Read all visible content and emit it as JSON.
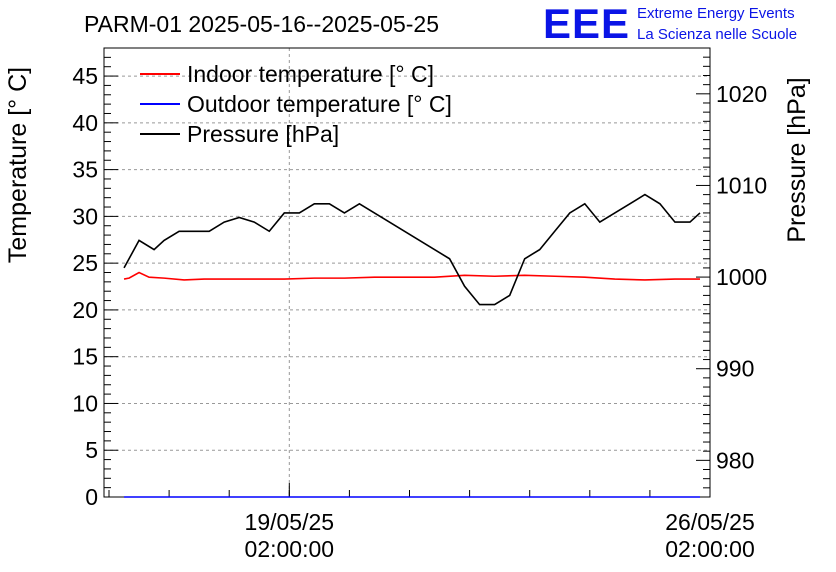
{
  "header": {
    "title": "PARM-01 2025-05-16--2025-05-25",
    "logo_text": "EEE",
    "org_line1": "Extreme Energy Events",
    "org_line2": "La Scienza nelle Scuole"
  },
  "colors": {
    "indoor": "#ff0000",
    "outdoor": "#0000ff",
    "pressure": "#000000",
    "logo": "#0a14e6"
  },
  "chart_data": {
    "type": "line",
    "title": "PARM-01 2025-05-16--2025-05-25",
    "ylabel": "Temperature [° C]",
    "y2label": "Pressure [hPa]",
    "ylim": [
      0,
      48
    ],
    "y2lim": [
      976,
      1025
    ],
    "yticks": [
      "0",
      "5",
      "10",
      "15",
      "20",
      "25",
      "30",
      "35",
      "40",
      "45"
    ],
    "y2ticks": [
      "980",
      "990",
      "1000",
      "1010",
      "1020"
    ],
    "xticks": [
      {
        "date": "19/05/25",
        "time": "02:00:00"
      },
      {
        "date": "26/05/25",
        "time": "02:00:00"
      }
    ],
    "xlim": [
      "2025-05-16T00:00",
      "2025-05-26T02:00"
    ],
    "grid": true,
    "legend_position": "top-left",
    "series": [
      {
        "name": "Indoor temperature [° C]",
        "axis": "left",
        "color": "#ff0000",
        "x": [
          "2025-05-16T08:00",
          "2025-05-16T10:00",
          "2025-05-16T14:00",
          "2025-05-16T18:00",
          "2025-05-17T00:00",
          "2025-05-17T08:00",
          "2025-05-17T16:00",
          "2025-05-18T00:00",
          "2025-05-18T12:00",
          "2025-05-19T00:00",
          "2025-05-19T12:00",
          "2025-05-20T00:00",
          "2025-05-20T12:00",
          "2025-05-21T00:00",
          "2025-05-21T12:00",
          "2025-05-22T00:00",
          "2025-05-22T12:00",
          "2025-05-23T00:00",
          "2025-05-23T12:00",
          "2025-05-24T00:00",
          "2025-05-24T12:00",
          "2025-05-25T00:00",
          "2025-05-25T12:00",
          "2025-05-25T22:00"
        ],
        "y": [
          23.3,
          23.4,
          24.0,
          23.5,
          23.4,
          23.2,
          23.3,
          23.3,
          23.3,
          23.3,
          23.4,
          23.4,
          23.5,
          23.5,
          23.5,
          23.7,
          23.6,
          23.7,
          23.6,
          23.5,
          23.3,
          23.2,
          23.3,
          23.3
        ]
      },
      {
        "name": "Outdoor temperature [° C]",
        "axis": "left",
        "color": "#0000ff",
        "x": [
          "2025-05-16T08:00",
          "2025-05-25T22:00"
        ],
        "y": [
          0,
          0
        ]
      },
      {
        "name": "Pressure [hPa]",
        "axis": "right",
        "color": "#000000",
        "x": [
          "2025-05-16T08:00",
          "2025-05-16T10:00",
          "2025-05-16T14:00",
          "2025-05-16T20:00",
          "2025-05-17T00:00",
          "2025-05-17T06:00",
          "2025-05-17T12:00",
          "2025-05-17T18:00",
          "2025-05-18T00:00",
          "2025-05-18T06:00",
          "2025-05-18T12:00",
          "2025-05-18T18:00",
          "2025-05-19T00:00",
          "2025-05-19T06:00",
          "2025-05-19T12:00",
          "2025-05-19T18:00",
          "2025-05-20T00:00",
          "2025-05-20T06:00",
          "2025-05-21T18:00",
          "2025-05-22T00:00",
          "2025-05-22T06:00",
          "2025-05-22T12:00",
          "2025-05-22T18:00",
          "2025-05-23T00:00",
          "2025-05-23T06:00",
          "2025-05-23T12:00",
          "2025-05-23T18:00",
          "2025-05-24T00:00",
          "2025-05-24T06:00",
          "2025-05-24T12:00",
          "2025-05-24T18:00",
          "2025-05-25T00:00",
          "2025-05-25T06:00",
          "2025-05-25T12:00",
          "2025-05-25T18:00",
          "2025-05-25T22:00"
        ],
        "y": [
          1001,
          1002,
          1004,
          1003,
          1004,
          1005,
          1005,
          1005,
          1006,
          1006.5,
          1006,
          1005,
          1007,
          1007,
          1008,
          1008,
          1007,
          1008,
          1002,
          999,
          997,
          997,
          998,
          1002,
          1003,
          1005,
          1007,
          1008,
          1006,
          1007,
          1008,
          1009,
          1008,
          1006,
          1006,
          1007
        ]
      }
    ]
  }
}
